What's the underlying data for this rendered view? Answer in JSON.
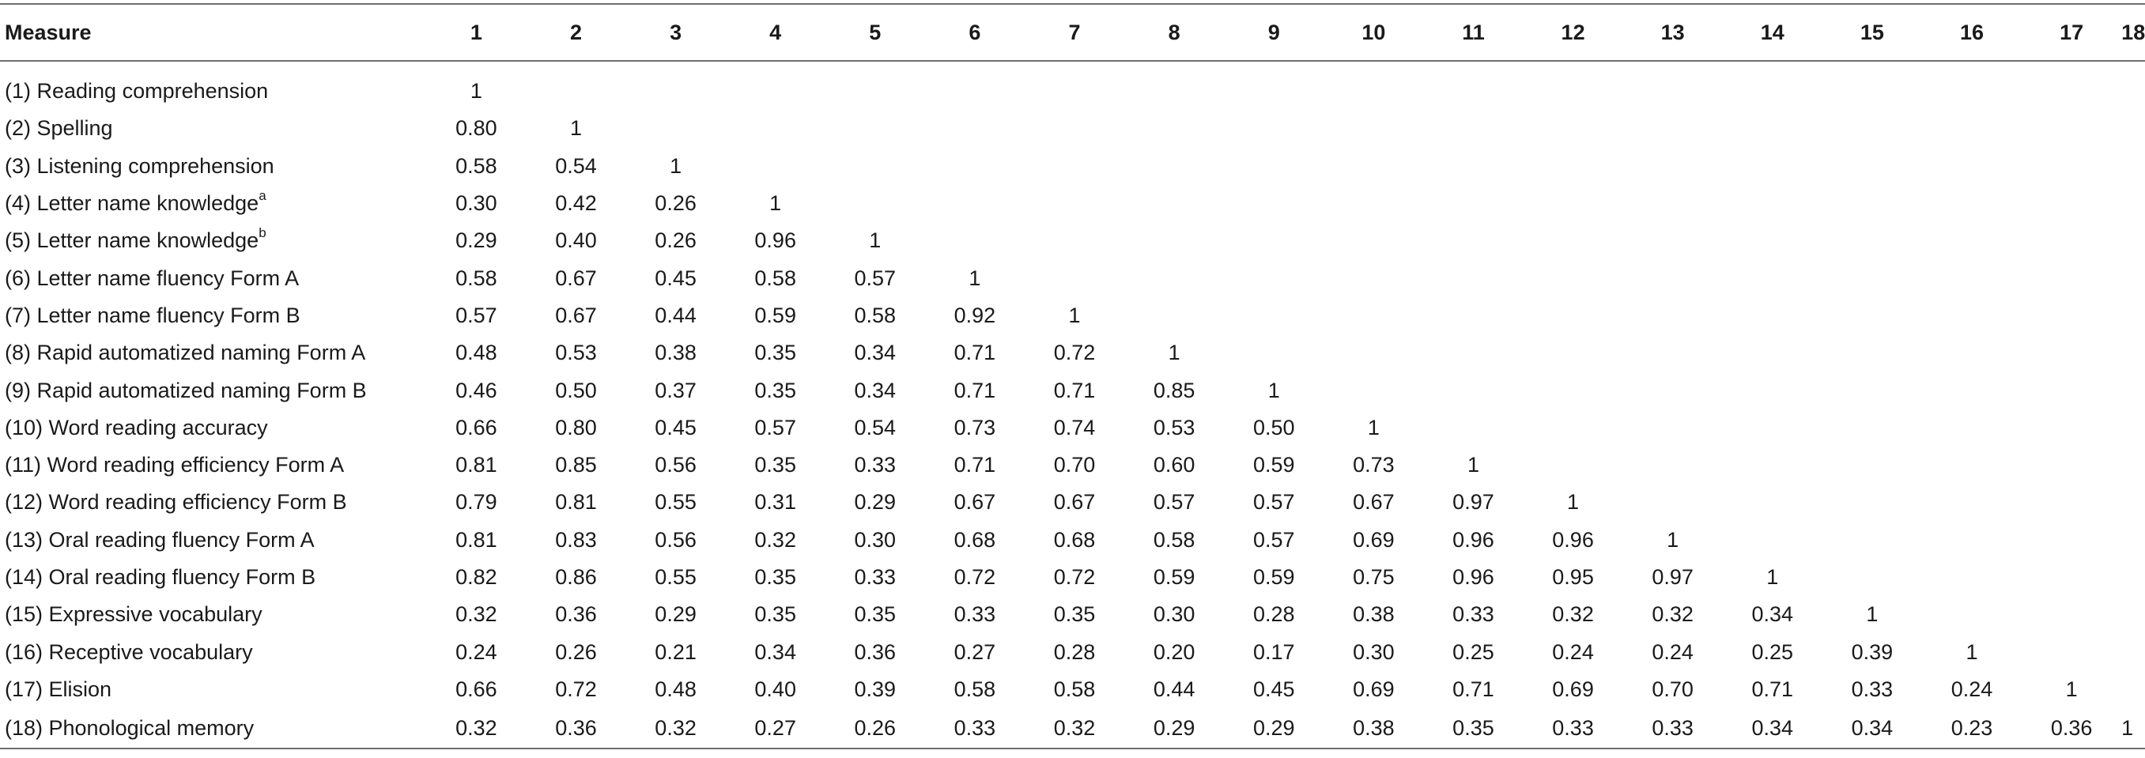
{
  "table": {
    "header": [
      "Measure",
      "1",
      "2",
      "3",
      "4",
      "5",
      "6",
      "7",
      "8",
      "9",
      "10",
      "11",
      "12",
      "13",
      "14",
      "15",
      "16",
      "17",
      "18"
    ],
    "rows": [
      {
        "measure": "(1) Reading comprehension",
        "sup": "",
        "values": [
          "1"
        ]
      },
      {
        "measure": "(2) Spelling",
        "sup": "",
        "values": [
          "0.80",
          "1"
        ]
      },
      {
        "measure": "(3) Listening comprehension",
        "sup": "",
        "values": [
          "0.58",
          "0.54",
          "1"
        ]
      },
      {
        "measure": "(4) Letter name knowledge",
        "sup": "a",
        "values": [
          "0.30",
          "0.42",
          "0.26",
          "1"
        ]
      },
      {
        "measure": "(5) Letter name knowledge",
        "sup": "b",
        "values": [
          "0.29",
          "0.40",
          "0.26",
          "0.96",
          "1"
        ]
      },
      {
        "measure": "(6) Letter name fluency Form A",
        "sup": "",
        "values": [
          "0.58",
          "0.67",
          "0.45",
          "0.58",
          "0.57",
          "1"
        ]
      },
      {
        "measure": "(7) Letter name fluency Form B",
        "sup": "",
        "values": [
          "0.57",
          "0.67",
          "0.44",
          "0.59",
          "0.58",
          "0.92",
          "1"
        ]
      },
      {
        "measure": "(8) Rapid automatized naming Form A",
        "sup": "",
        "values": [
          "0.48",
          "0.53",
          "0.38",
          "0.35",
          "0.34",
          "0.71",
          "0.72",
          "1"
        ]
      },
      {
        "measure": "(9) Rapid automatized naming Form B",
        "sup": "",
        "values": [
          "0.46",
          "0.50",
          "0.37",
          "0.35",
          "0.34",
          "0.71",
          "0.71",
          "0.85",
          "1"
        ]
      },
      {
        "measure": "(10) Word reading accuracy",
        "sup": "",
        "values": [
          "0.66",
          "0.80",
          "0.45",
          "0.57",
          "0.54",
          "0.73",
          "0.74",
          "0.53",
          "0.50",
          "1"
        ]
      },
      {
        "measure": "(11) Word reading efficiency Form A",
        "sup": "",
        "values": [
          "0.81",
          "0.85",
          "0.56",
          "0.35",
          "0.33",
          "0.71",
          "0.70",
          "0.60",
          "0.59",
          "0.73",
          "1"
        ]
      },
      {
        "measure": "(12) Word reading efficiency Form B",
        "sup": "",
        "values": [
          "0.79",
          "0.81",
          "0.55",
          "0.31",
          "0.29",
          "0.67",
          "0.67",
          "0.57",
          "0.57",
          "0.67",
          "0.97",
          "1"
        ]
      },
      {
        "measure": "(13) Oral reading fluency Form A",
        "sup": "",
        "values": [
          "0.81",
          "0.83",
          "0.56",
          "0.32",
          "0.30",
          "0.68",
          "0.68",
          "0.58",
          "0.57",
          "0.69",
          "0.96",
          "0.96",
          "1"
        ]
      },
      {
        "measure": "(14) Oral reading fluency Form B",
        "sup": "",
        "values": [
          "0.82",
          "0.86",
          "0.55",
          "0.35",
          "0.33",
          "0.72",
          "0.72",
          "0.59",
          "0.59",
          "0.75",
          "0.96",
          "0.95",
          "0.97",
          "1"
        ]
      },
      {
        "measure": "(15) Expressive vocabulary",
        "sup": "",
        "values": [
          "0.32",
          "0.36",
          "0.29",
          "0.35",
          "0.35",
          "0.33",
          "0.35",
          "0.30",
          "0.28",
          "0.38",
          "0.33",
          "0.32",
          "0.32",
          "0.34",
          "1"
        ]
      },
      {
        "measure": "(16) Receptive vocabulary",
        "sup": "",
        "values": [
          "0.24",
          "0.26",
          "0.21",
          "0.34",
          "0.36",
          "0.27",
          "0.28",
          "0.20",
          "0.17",
          "0.30",
          "0.25",
          "0.24",
          "0.24",
          "0.25",
          "0.39",
          "1"
        ]
      },
      {
        "measure": "(17) Elision",
        "sup": "",
        "values": [
          "0.66",
          "0.72",
          "0.48",
          "0.40",
          "0.39",
          "0.58",
          "0.58",
          "0.44",
          "0.45",
          "0.69",
          "0.71",
          "0.69",
          "0.70",
          "0.71",
          "0.33",
          "0.24",
          "1"
        ]
      },
      {
        "measure": "(18) Phonological memory",
        "sup": "",
        "values": [
          "0.32",
          "0.36",
          "0.32",
          "0.27",
          "0.26",
          "0.33",
          "0.32",
          "0.29",
          "0.29",
          "0.38",
          "0.35",
          "0.33",
          "0.33",
          "0.34",
          "0.34",
          "0.23",
          "0.36",
          "1"
        ]
      }
    ]
  }
}
